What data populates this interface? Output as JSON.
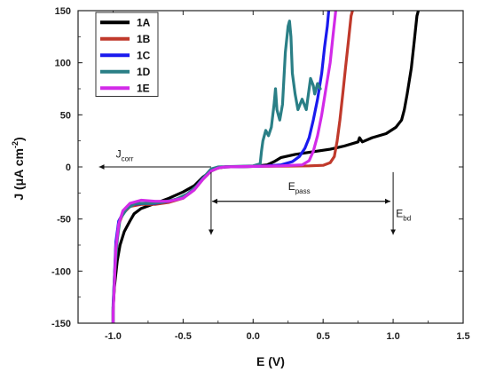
{
  "chart_data": {
    "type": "line",
    "xlabel": "E (V)",
    "ylabel_main": "J (μA cm",
    "ylabel_sup": "-2",
    "ylabel_close": ")",
    "xlim": [
      -1.25,
      1.5
    ],
    "ylim": [
      -150,
      150
    ],
    "x_ticks": [
      -1.0,
      -0.5,
      0.0,
      0.5,
      1.0,
      1.5
    ],
    "x_tick_labels": [
      "-1.0",
      "-0.5",
      "0.0",
      "0.5",
      "1.0",
      "1.5"
    ],
    "y_ticks": [
      -150,
      -100,
      -50,
      0,
      50,
      100,
      150
    ],
    "y_tick_labels": [
      "-150",
      "-100",
      "-50",
      "0",
      "50",
      "100",
      "150"
    ],
    "legend_position": "top-left",
    "series": [
      {
        "name": "1A",
        "color": "#000000",
        "points": [
          [
            -1.0,
            -150
          ],
          [
            -1.0,
            -135
          ],
          [
            -0.99,
            -115
          ],
          [
            -0.97,
            -90
          ],
          [
            -0.95,
            -75
          ],
          [
            -0.92,
            -62
          ],
          [
            -0.88,
            -52
          ],
          [
            -0.85,
            -45
          ],
          [
            -0.8,
            -40
          ],
          [
            -0.7,
            -35
          ],
          [
            -0.6,
            -30
          ],
          [
            -0.5,
            -24
          ],
          [
            -0.42,
            -18
          ],
          [
            -0.36,
            -10
          ],
          [
            -0.3,
            -4
          ],
          [
            -0.25,
            -1
          ],
          [
            -0.2,
            0
          ],
          [
            0.0,
            0.5
          ],
          [
            0.1,
            2
          ],
          [
            0.15,
            5
          ],
          [
            0.2,
            9
          ],
          [
            0.3,
            12
          ],
          [
            0.4,
            14
          ],
          [
            0.55,
            17
          ],
          [
            0.65,
            20
          ],
          [
            0.75,
            24
          ],
          [
            0.76,
            28
          ],
          [
            0.78,
            24
          ],
          [
            0.85,
            28
          ],
          [
            0.95,
            32
          ],
          [
            1.02,
            38
          ],
          [
            1.06,
            45
          ],
          [
            1.08,
            55
          ],
          [
            1.1,
            70
          ],
          [
            1.13,
            95
          ],
          [
            1.15,
            120
          ],
          [
            1.17,
            145
          ],
          [
            1.18,
            150
          ]
        ]
      },
      {
        "name": "1B",
        "color": "#c0392b",
        "points": [
          [
            -1.0,
            -150
          ],
          [
            -1.0,
            -138
          ],
          [
            -0.99,
            -110
          ],
          [
            -0.98,
            -75
          ],
          [
            -0.96,
            -55
          ],
          [
            -0.93,
            -45
          ],
          [
            -0.88,
            -38
          ],
          [
            -0.8,
            -36
          ],
          [
            -0.7,
            -36
          ],
          [
            -0.6,
            -34
          ],
          [
            -0.5,
            -30
          ],
          [
            -0.42,
            -22
          ],
          [
            -0.36,
            -12
          ],
          [
            -0.3,
            -4
          ],
          [
            -0.25,
            -1
          ],
          [
            -0.2,
            0
          ],
          [
            0.0,
            0.5
          ],
          [
            0.2,
            0.8
          ],
          [
            0.4,
            1
          ],
          [
            0.5,
            1.5
          ],
          [
            0.55,
            4
          ],
          [
            0.58,
            10
          ],
          [
            0.6,
            25
          ],
          [
            0.62,
            45
          ],
          [
            0.64,
            70
          ],
          [
            0.66,
            95
          ],
          [
            0.68,
            120
          ],
          [
            0.7,
            145
          ],
          [
            0.71,
            150
          ]
        ]
      },
      {
        "name": "1C",
        "color": "#1a1aee",
        "points": [
          [
            -1.0,
            -150
          ],
          [
            -1.0,
            -132
          ],
          [
            -0.99,
            -105
          ],
          [
            -0.98,
            -72
          ],
          [
            -0.96,
            -52
          ],
          [
            -0.92,
            -42
          ],
          [
            -0.86,
            -36
          ],
          [
            -0.78,
            -35
          ],
          [
            -0.7,
            -35
          ],
          [
            -0.6,
            -33
          ],
          [
            -0.5,
            -29
          ],
          [
            -0.42,
            -21
          ],
          [
            -0.36,
            -11
          ],
          [
            -0.3,
            -3
          ],
          [
            -0.25,
            -0.5
          ],
          [
            -0.2,
            0
          ],
          [
            0.0,
            0.5
          ],
          [
            0.1,
            1
          ],
          [
            0.2,
            2
          ],
          [
            0.28,
            5
          ],
          [
            0.33,
            10
          ],
          [
            0.37,
            18
          ],
          [
            0.4,
            28
          ],
          [
            0.43,
            45
          ],
          [
            0.46,
            65
          ],
          [
            0.49,
            90
          ],
          [
            0.51,
            115
          ],
          [
            0.53,
            135
          ],
          [
            0.54,
            150
          ]
        ]
      },
      {
        "name": "1D",
        "color": "#2a7f86",
        "points": [
          [
            -1.0,
            -150
          ],
          [
            -1.0,
            -135
          ],
          [
            -0.99,
            -105
          ],
          [
            -0.97,
            -70
          ],
          [
            -0.95,
            -50
          ],
          [
            -0.9,
            -40
          ],
          [
            -0.84,
            -35
          ],
          [
            -0.75,
            -35
          ],
          [
            -0.65,
            -34
          ],
          [
            -0.55,
            -31
          ],
          [
            -0.47,
            -26
          ],
          [
            -0.4,
            -18
          ],
          [
            -0.34,
            -8
          ],
          [
            -0.3,
            -2
          ],
          [
            -0.25,
            0
          ],
          [
            0.0,
            1
          ],
          [
            0.05,
            3
          ],
          [
            0.06,
            15
          ],
          [
            0.07,
            25
          ],
          [
            0.09,
            35
          ],
          [
            0.11,
            30
          ],
          [
            0.13,
            38
          ],
          [
            0.15,
            60
          ],
          [
            0.16,
            75
          ],
          [
            0.17,
            55
          ],
          [
            0.19,
            45
          ],
          [
            0.21,
            60
          ],
          [
            0.23,
            110
          ],
          [
            0.25,
            135
          ],
          [
            0.26,
            140
          ],
          [
            0.27,
            125
          ],
          [
            0.28,
            90
          ],
          [
            0.3,
            70
          ],
          [
            0.32,
            55
          ],
          [
            0.35,
            65
          ],
          [
            0.38,
            55
          ],
          [
            0.41,
            85
          ],
          [
            0.43,
            78
          ],
          [
            0.44,
            70
          ],
          [
            0.46,
            80
          ],
          [
            0.48,
            75
          ]
        ]
      },
      {
        "name": "1E",
        "color": "#d22ae8",
        "points": [
          [
            -1.0,
            -150
          ],
          [
            -1.0,
            -140
          ],
          [
            -0.99,
            -110
          ],
          [
            -0.98,
            -78
          ],
          [
            -0.96,
            -55
          ],
          [
            -0.93,
            -42
          ],
          [
            -0.88,
            -35
          ],
          [
            -0.8,
            -32
          ],
          [
            -0.7,
            -33
          ],
          [
            -0.6,
            -33
          ],
          [
            -0.5,
            -30
          ],
          [
            -0.42,
            -22
          ],
          [
            -0.36,
            -12
          ],
          [
            -0.3,
            -4
          ],
          [
            -0.25,
            -1
          ],
          [
            -0.2,
            0
          ],
          [
            0.0,
            0.5
          ],
          [
            0.2,
            1
          ],
          [
            0.35,
            2
          ],
          [
            0.4,
            6
          ],
          [
            0.43,
            15
          ],
          [
            0.46,
            30
          ],
          [
            0.49,
            50
          ],
          [
            0.52,
            75
          ],
          [
            0.55,
            100
          ],
          [
            0.57,
            125
          ],
          [
            0.59,
            150
          ]
        ]
      }
    ],
    "annotations": {
      "jcorr_main": "J",
      "jcorr_sub": "corr",
      "epass_main": "E",
      "epass_sub": "pass",
      "ebd_main": "E",
      "ebd_sub": "bd",
      "jcorr_arrow": {
        "from": [
          -0.3,
          0
        ],
        "to": [
          -1.1,
          0
        ]
      },
      "epass_arrow": {
        "from": [
          -0.3,
          -33
        ],
        "to": [
          0.98,
          -33
        ]
      },
      "drop_left": {
        "x": -0.3,
        "from": -5,
        "to": -65
      },
      "drop_right": {
        "x": 1.0,
        "from": -5,
        "to": -65
      }
    }
  }
}
